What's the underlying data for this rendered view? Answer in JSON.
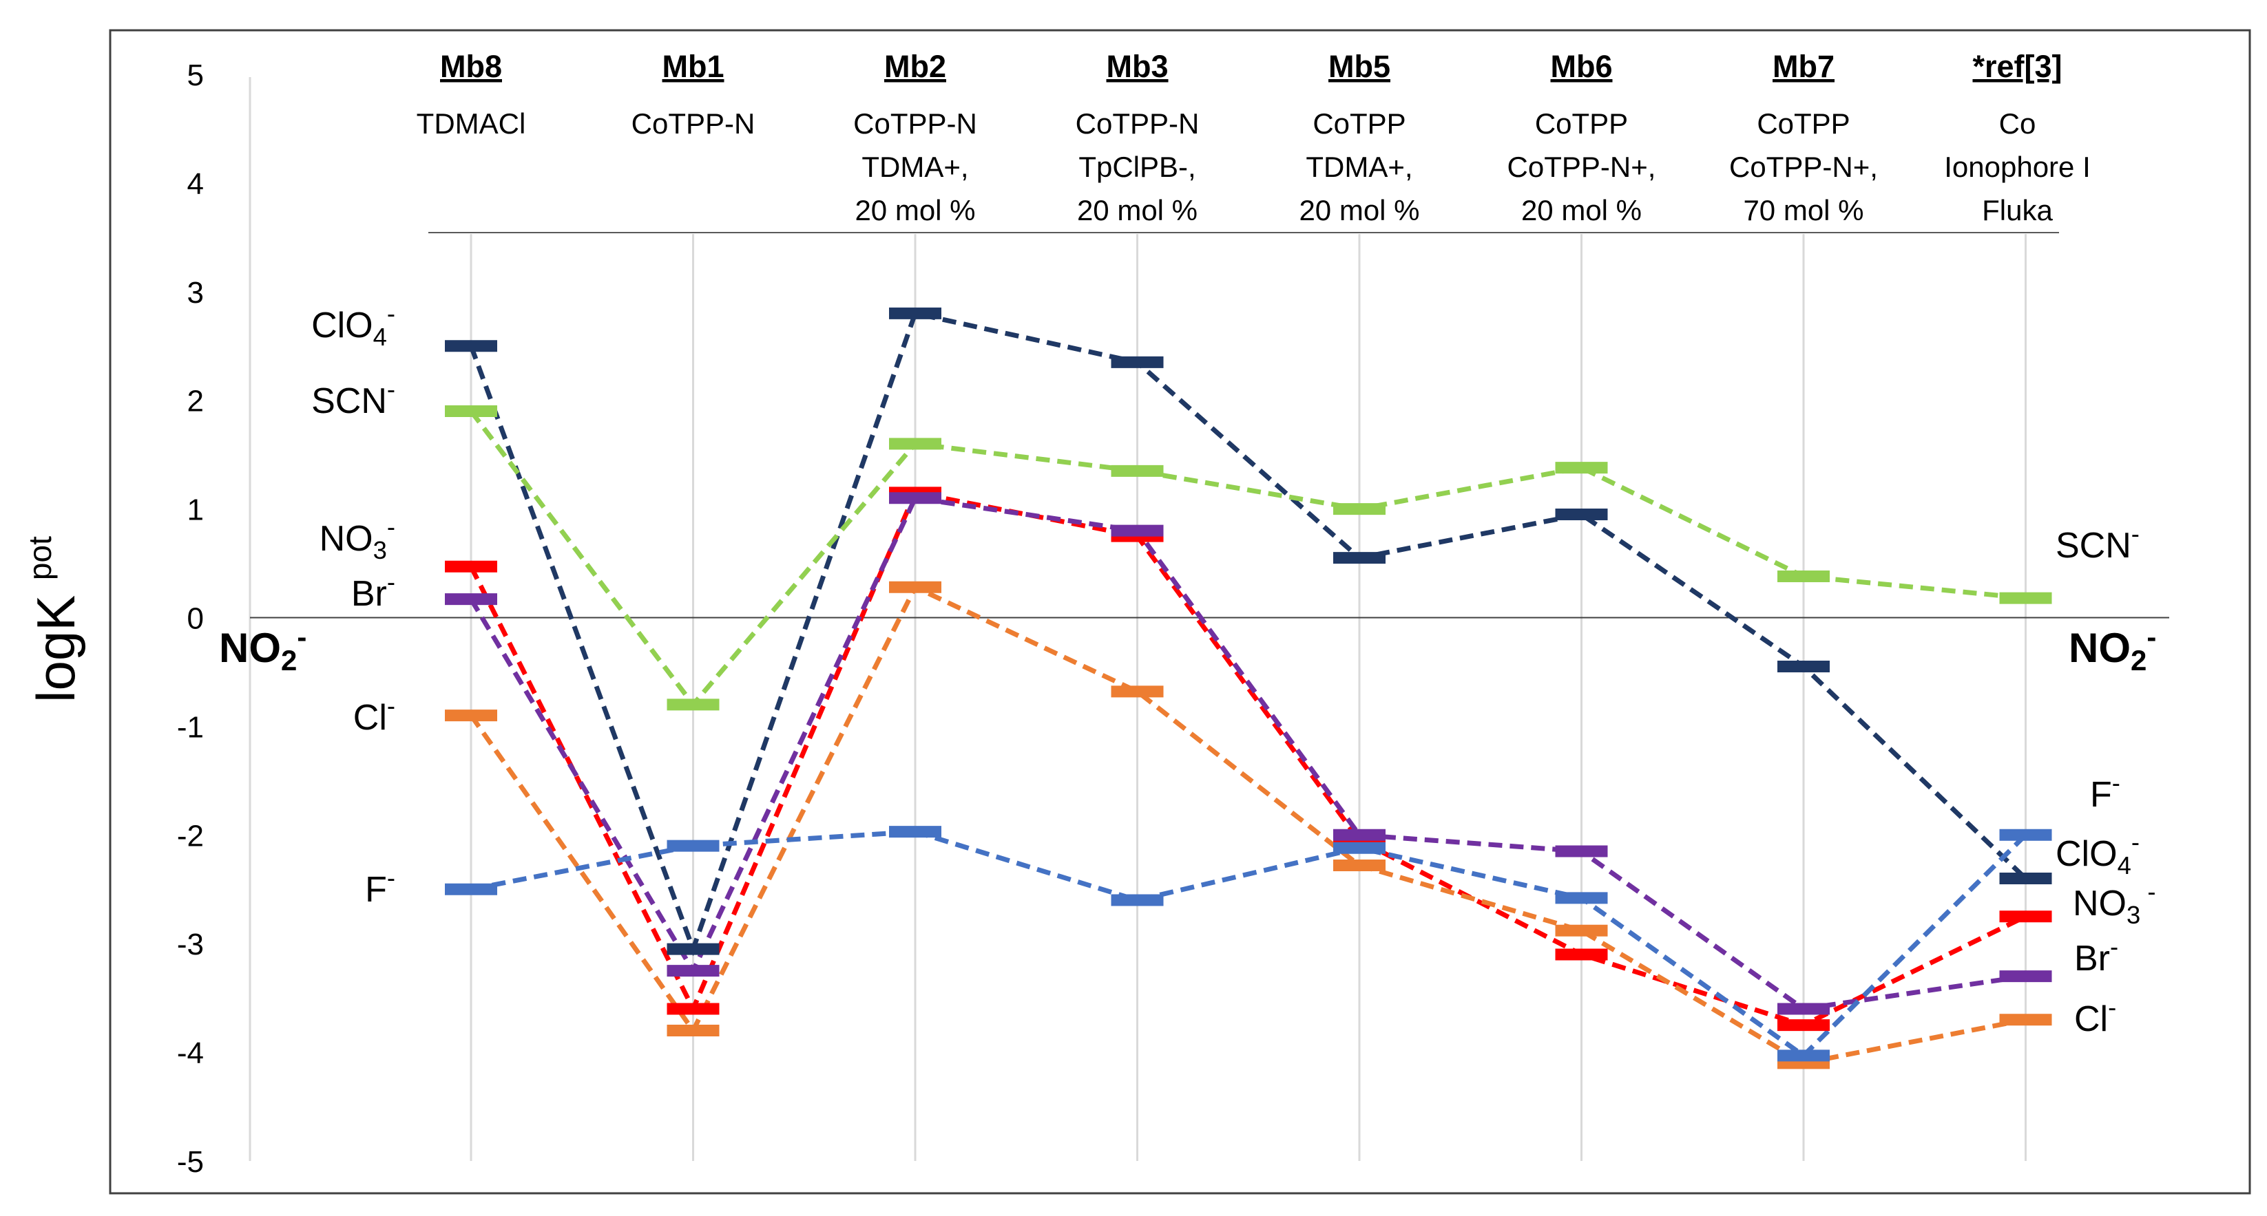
{
  "chart_data": {
    "type": "line",
    "ylabel": "logK",
    "ylabel_sup": "pot",
    "ylim": [
      -5,
      5
    ],
    "yticks": [
      "5",
      "4",
      "3",
      "2",
      "1",
      "0",
      "-1",
      "-2",
      "-3",
      "-4",
      "-5"
    ],
    "reference_ion": {
      "base": "NO",
      "sub": "2",
      "sup": "-"
    },
    "membranes": [
      {
        "name": "Mb8",
        "desc": [
          "TDMACl"
        ]
      },
      {
        "name": "Mb1",
        "desc": [
          "CoTPP-N"
        ]
      },
      {
        "name": "Mb2",
        "desc": [
          "CoTPP-N",
          "TDMA+,",
          "20 mol %"
        ]
      },
      {
        "name": "Mb3",
        "desc": [
          "CoTPP-N",
          "TpClPB-,",
          "20 mol %"
        ]
      },
      {
        "name": "Mb5",
        "desc": [
          "CoTPP",
          "TDMA+,",
          "20 mol %"
        ]
      },
      {
        "name": "Mb6",
        "desc": [
          "CoTPP",
          "CoTPP-N+,",
          "20 mol %"
        ]
      },
      {
        "name": "Mb7",
        "desc": [
          "CoTPP",
          "CoTPP-N+,",
          "70 mol %"
        ]
      },
      {
        "name": "*ref[3]",
        "desc": [
          "Co",
          "Ionophore I",
          "Fluka"
        ]
      }
    ],
    "series": [
      {
        "name": "ClO4-",
        "color": "#1f3864",
        "values": [
          2.5,
          -3.05,
          2.8,
          2.35,
          0.55,
          0.95,
          -0.45,
          -2.4
        ]
      },
      {
        "name": "SCN-",
        "color": "#92d050",
        "values": [
          1.9,
          -0.8,
          1.6,
          1.35,
          1.0,
          1.38,
          0.38,
          0.18
        ]
      },
      {
        "name": "NO3-",
        "color": "#ff0000",
        "values": [
          0.47,
          -3.6,
          1.15,
          0.75,
          -2.05,
          -3.1,
          -3.75,
          -2.75
        ]
      },
      {
        "name": "Br-",
        "color": "#7030a0",
        "values": [
          0.17,
          -3.25,
          1.1,
          0.8,
          -2.0,
          -2.15,
          -3.6,
          -3.3
        ]
      },
      {
        "name": "Cl-",
        "color": "#ed7d31",
        "values": [
          -0.9,
          -3.8,
          0.28,
          -0.68,
          -2.28,
          -2.88,
          -4.1,
          -3.7
        ]
      },
      {
        "name": "F-",
        "color": "#4472c4",
        "values": [
          -2.5,
          -2.1,
          -1.97,
          -2.6,
          -2.12,
          -2.58,
          -4.03,
          -2.0
        ]
      }
    ],
    "left_labels": [
      {
        "base": "ClO",
        "sub": "4",
        "sup": "-"
      },
      {
        "base": "SCN",
        "sub": "",
        "sup": "-"
      },
      {
        "base": "NO",
        "sub": "3",
        "sup": "-"
      },
      {
        "base": "Br",
        "sub": "",
        "sup": "-"
      },
      {
        "base": "Cl",
        "sub": "",
        "sup": "-"
      },
      {
        "base": "F",
        "sub": "",
        "sup": "-"
      }
    ],
    "right_labels": [
      {
        "base": "SCN",
        "sub": "",
        "sup": "-"
      },
      {
        "base": "F",
        "sub": "",
        "sup": "-"
      },
      {
        "base": "ClO",
        "sub": "4",
        "sup": "-"
      },
      {
        "base": "NO",
        "sub": "3",
        "sup": " -"
      },
      {
        "base": "Br",
        "sub": "",
        "sup": "-"
      },
      {
        "base": "Cl",
        "sub": "",
        "sup": "-"
      }
    ]
  }
}
